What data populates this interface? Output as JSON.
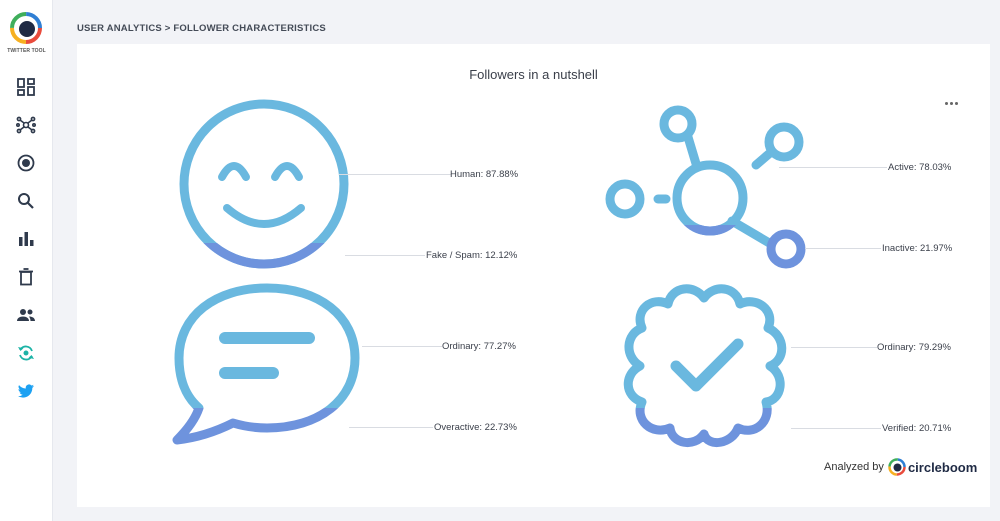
{
  "app": {
    "logo_text": "TWITTER TOOL"
  },
  "sidebar": {
    "items": [
      {
        "name": "dashboard-icon"
      },
      {
        "name": "network-icon"
      },
      {
        "name": "target-icon"
      },
      {
        "name": "search-icon"
      },
      {
        "name": "bar-chart-icon"
      },
      {
        "name": "trash-icon"
      },
      {
        "name": "people-icon"
      },
      {
        "name": "sync-icon"
      },
      {
        "name": "twitter-icon"
      }
    ]
  },
  "breadcrumb": "USER ANALYTICS > FOLLOWER CHARACTERISTICS",
  "card": {
    "title": "Followers in a nutshell",
    "more_icon": "more-horizontal-icon"
  },
  "metrics": {
    "human": "Human: 87.88%",
    "fake": "Fake / Spam: 12.12%",
    "ordinary_tweets": "Ordinary: 77.27%",
    "overactive": "Overactive: 22.73%",
    "active": "Active: 78.03%",
    "inactive": "Inactive: 21.97%",
    "ordinary_verified": "Ordinary: 79.29%",
    "verified": "Verified: 20.71%"
  },
  "footer": {
    "analyzed_by": "Analyzed by",
    "brand": "circleboom"
  },
  "colors": {
    "primary": "#6ab8df",
    "secondary": "#6e93dd",
    "twitter": "#1da1f2"
  }
}
